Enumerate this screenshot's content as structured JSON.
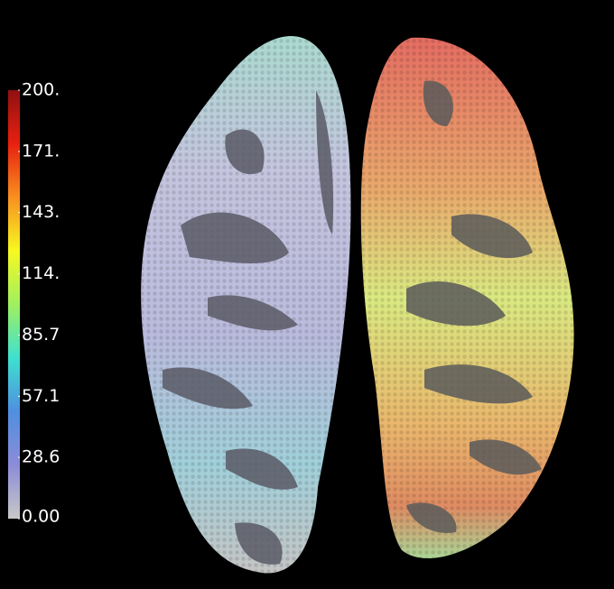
{
  "colorbar": {
    "clim": [
      0,
      200
    ],
    "colors": [
      "#c8c8c8",
      "#8c8cd8",
      "#4f8fe0",
      "#3fe0d0",
      "#9ff060",
      "#f8f820",
      "#f89020",
      "#e82010",
      "#901010"
    ],
    "ticks": [
      {
        "value": 0,
        "label": "0.00"
      },
      {
        "value": 28.6,
        "label": "28.6"
      },
      {
        "value": 57.1,
        "label": "57.1"
      },
      {
        "value": 85.7,
        "label": "85.7"
      },
      {
        "value": 114.3,
        "label": "114."
      },
      {
        "value": 142.9,
        "label": "143."
      },
      {
        "value": 171.4,
        "label": "171."
      },
      {
        "value": 200,
        "label": "200."
      }
    ]
  }
}
